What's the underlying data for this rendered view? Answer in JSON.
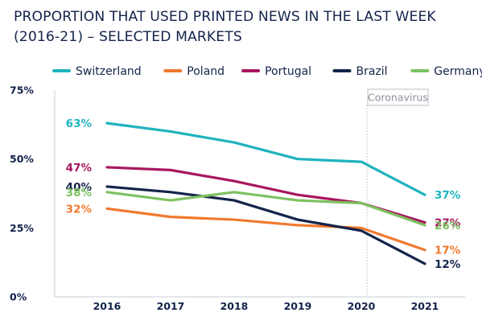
{
  "title_lines": [
    "PROPORTION THAT USED PRINTED NEWS IN THE LAST WEEK",
    "(2016-21) – SELECTED MARKETS"
  ],
  "annotation": "Coronavirus",
  "chart_data": {
    "type": "line",
    "title": "PROPORTION THAT USED PRINTED NEWS IN THE LAST WEEK (2016-21) – SELECTED MARKETS",
    "x": [
      2016,
      2017,
      2018,
      2019,
      2020,
      2021
    ],
    "x_tick_labels": [
      "2016",
      "2017",
      "2018",
      "2019",
      "2020",
      "2021"
    ],
    "y_tick_labels": [
      "0%",
      "25%",
      "50%",
      "75%"
    ],
    "y_ticks": [
      0,
      25,
      50,
      75
    ],
    "ylim": [
      0,
      75
    ],
    "xlabel": "",
    "ylabel": "",
    "grid": false,
    "legend_position": "top",
    "series": [
      {
        "name": "Switzerland",
        "color": "#1fb3be",
        "values": [
          63,
          60,
          56,
          50,
          49,
          37
        ],
        "start_label": "63%",
        "end_label": "37%"
      },
      {
        "name": "Poland",
        "color": "#f07a2e",
        "values": [
          32,
          29,
          28,
          26,
          25,
          17
        ],
        "start_label": "32%",
        "end_label": "17%"
      },
      {
        "name": "Portugal",
        "color": "#a8175e",
        "values": [
          47,
          46,
          42,
          37,
          34,
          27
        ],
        "start_label": "47%",
        "end_label": "27%"
      },
      {
        "name": "Brazil",
        "color": "#14234a",
        "values": [
          40,
          38,
          35,
          28,
          24,
          12
        ],
        "start_label": "40%",
        "end_label": "12%"
      },
      {
        "name": "Germany",
        "color": "#7dc160",
        "values": [
          38,
          35,
          38,
          35,
          34,
          26
        ],
        "start_label": "38%",
        "end_label": "26%"
      }
    ],
    "annotations": [
      {
        "x": 2020,
        "text": "Coronavirus",
        "style": "dotted vertical line"
      }
    ]
  }
}
